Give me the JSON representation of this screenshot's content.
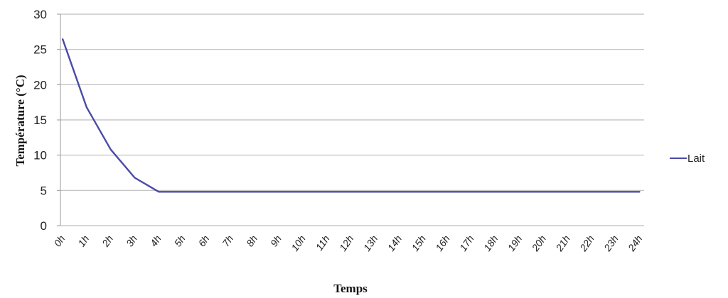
{
  "chart_data": {
    "type": "line",
    "title": "",
    "xlabel": "Temps",
    "ylabel": "Température (°C)",
    "ylim": [
      0,
      30
    ],
    "yticks": [
      "0",
      "5",
      "10",
      "15",
      "20",
      "25",
      "30"
    ],
    "grid": "horizontal",
    "legend_position": "right",
    "categories": [
      "0h",
      "1h",
      "2h",
      "3h",
      "4h",
      "5h",
      "6h",
      "7h",
      "8h",
      "9h",
      "10h",
      "11h",
      "12h",
      "13h",
      "14h",
      "15h",
      "16h",
      "17h",
      "18h",
      "19h",
      "20h",
      "21h",
      "22h",
      "23h",
      "24h"
    ],
    "series": [
      {
        "name": "Lait",
        "color": "#4a4aa8",
        "values": [
          26.5,
          16.8,
          10.8,
          6.8,
          4.8,
          4.8,
          4.8,
          4.8,
          4.8,
          4.8,
          4.8,
          4.8,
          4.8,
          4.8,
          4.8,
          4.8,
          4.8,
          4.8,
          4.8,
          4.8,
          4.8,
          4.8,
          4.8,
          4.8,
          4.8
        ]
      }
    ]
  }
}
